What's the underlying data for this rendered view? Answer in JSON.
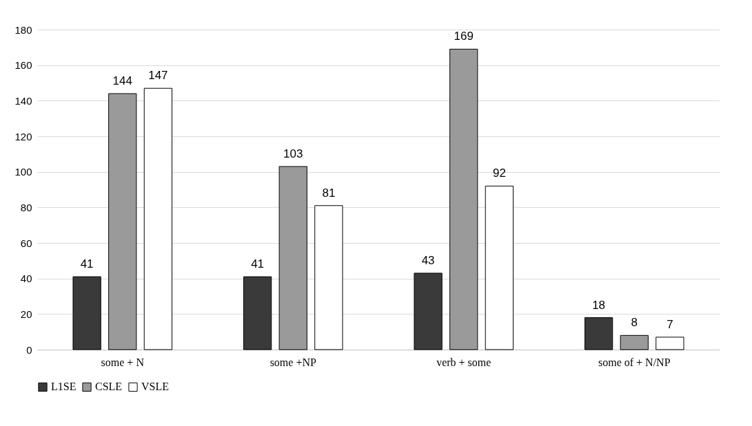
{
  "chart_data": {
    "type": "bar",
    "categories": [
      "some + N",
      "some +NP",
      "verb + some",
      "some of + N/NP"
    ],
    "series": [
      {
        "name": "L1SE",
        "color": "#3a3a3a",
        "values": [
          41,
          41,
          43,
          18
        ]
      },
      {
        "name": "CSLE",
        "color": "#9a9a9a",
        "values": [
          144,
          103,
          169,
          8
        ]
      },
      {
        "name": "VSLE",
        "color": "#ffffff",
        "values": [
          147,
          81,
          92,
          7
        ]
      }
    ],
    "ylim": [
      0,
      180
    ],
    "yticks": [
      0,
      20,
      40,
      60,
      80,
      100,
      120,
      140,
      160,
      180
    ],
    "grid": "y",
    "legend": "bottom",
    "data_labels": true
  }
}
